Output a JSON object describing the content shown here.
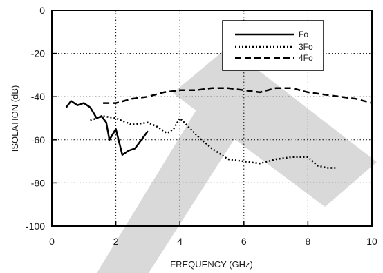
{
  "chart_data": {
    "type": "line",
    "title": "",
    "xlabel": "FREQUENCY (GHz)",
    "ylabel": "ISOLATION (dB)",
    "xlim": [
      0,
      10
    ],
    "ylim": [
      -100,
      0
    ],
    "x_ticks": [
      "0",
      "2",
      "4",
      "6",
      "8",
      "10"
    ],
    "y_ticks": [
      "0",
      "-20",
      "-40",
      "-60",
      "-80",
      "-100"
    ],
    "grid": "dotted",
    "legend_position": "top-right",
    "watermark": "TE",
    "watermark_color": "#d9d9d9",
    "series": [
      {
        "name": "Fo",
        "style": "solid",
        "points": [
          [
            0.45,
            -45
          ],
          [
            0.6,
            -42
          ],
          [
            0.8,
            -44
          ],
          [
            1.0,
            -43
          ],
          [
            1.2,
            -45
          ],
          [
            1.4,
            -50
          ],
          [
            1.55,
            -49
          ],
          [
            1.7,
            -52
          ],
          [
            1.8,
            -60
          ],
          [
            2.0,
            -55
          ],
          [
            2.2,
            -67
          ],
          [
            2.4,
            -65
          ],
          [
            2.6,
            -64
          ],
          [
            2.8,
            -60
          ],
          [
            3.0,
            -56
          ]
        ]
      },
      {
        "name": "3Fo",
        "style": "dotted",
        "points": [
          [
            1.2,
            -51
          ],
          [
            1.6,
            -49
          ],
          [
            2.0,
            -50
          ],
          [
            2.5,
            -53
          ],
          [
            3.0,
            -52
          ],
          [
            3.3,
            -54
          ],
          [
            3.6,
            -57
          ],
          [
            3.8,
            -55
          ],
          [
            4.0,
            -50
          ],
          [
            4.2,
            -53
          ],
          [
            4.6,
            -59
          ],
          [
            5.0,
            -64
          ],
          [
            5.5,
            -69
          ],
          [
            6.0,
            -70
          ],
          [
            6.5,
            -71
          ],
          [
            7.0,
            -69
          ],
          [
            7.5,
            -68
          ],
          [
            8.0,
            -68
          ],
          [
            8.3,
            -72
          ],
          [
            8.6,
            -73
          ],
          [
            8.9,
            -73
          ]
        ]
      },
      {
        "name": "4Fo",
        "style": "dashed",
        "points": [
          [
            1.6,
            -43
          ],
          [
            2.0,
            -43
          ],
          [
            2.5,
            -41
          ],
          [
            3.0,
            -40
          ],
          [
            3.5,
            -38
          ],
          [
            4.0,
            -37
          ],
          [
            4.5,
            -37
          ],
          [
            5.0,
            -36
          ],
          [
            5.5,
            -36
          ],
          [
            6.0,
            -37
          ],
          [
            6.5,
            -38
          ],
          [
            7.0,
            -36
          ],
          [
            7.5,
            -36
          ],
          [
            8.0,
            -38
          ],
          [
            8.5,
            -39
          ],
          [
            9.0,
            -40
          ],
          [
            9.5,
            -41
          ],
          [
            10.0,
            -43
          ]
        ]
      }
    ]
  }
}
